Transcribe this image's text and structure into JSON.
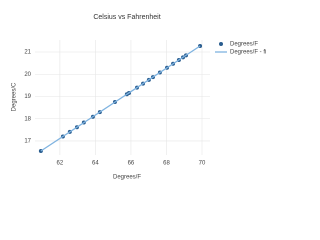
{
  "chart_data": {
    "type": "scatter",
    "title": "Celsius vs Fahrenheit",
    "x_label": "Degrees/F",
    "y_label": "Degrees/C",
    "xlim": [
      60.6,
      70.45
    ],
    "ylim": [
      16.37,
      21.54
    ],
    "xticks": [
      62,
      64,
      66,
      68,
      70
    ],
    "yticks": [
      17,
      18,
      19,
      20,
      21
    ],
    "grid": true,
    "legend": "top-right",
    "series": [
      {
        "name": "Degrees/F",
        "color": "#2a5d8f",
        "mode": "markers",
        "x": [
          60.93,
          62.17,
          62.56,
          62.96,
          63.35,
          63.86,
          64.25,
          65.1,
          65.77,
          65.89,
          66.34,
          66.68,
          67.01,
          67.24,
          67.63,
          68.03,
          68.37,
          68.7,
          68.93,
          69.1,
          69.89
        ],
        "values": [
          16.55,
          17.2,
          17.41,
          17.62,
          17.83,
          18.09,
          18.3,
          18.75,
          19.1,
          19.16,
          19.4,
          19.58,
          19.75,
          19.87,
          20.08,
          20.29,
          20.47,
          20.64,
          20.76,
          20.85,
          21.27
        ]
      },
      {
        "name": "Degrees/F - fit",
        "color": "#7fb3e0",
        "mode": "line",
        "x": [
          60.93,
          69.89
        ],
        "values": [
          16.55,
          21.27
        ]
      }
    ]
  }
}
